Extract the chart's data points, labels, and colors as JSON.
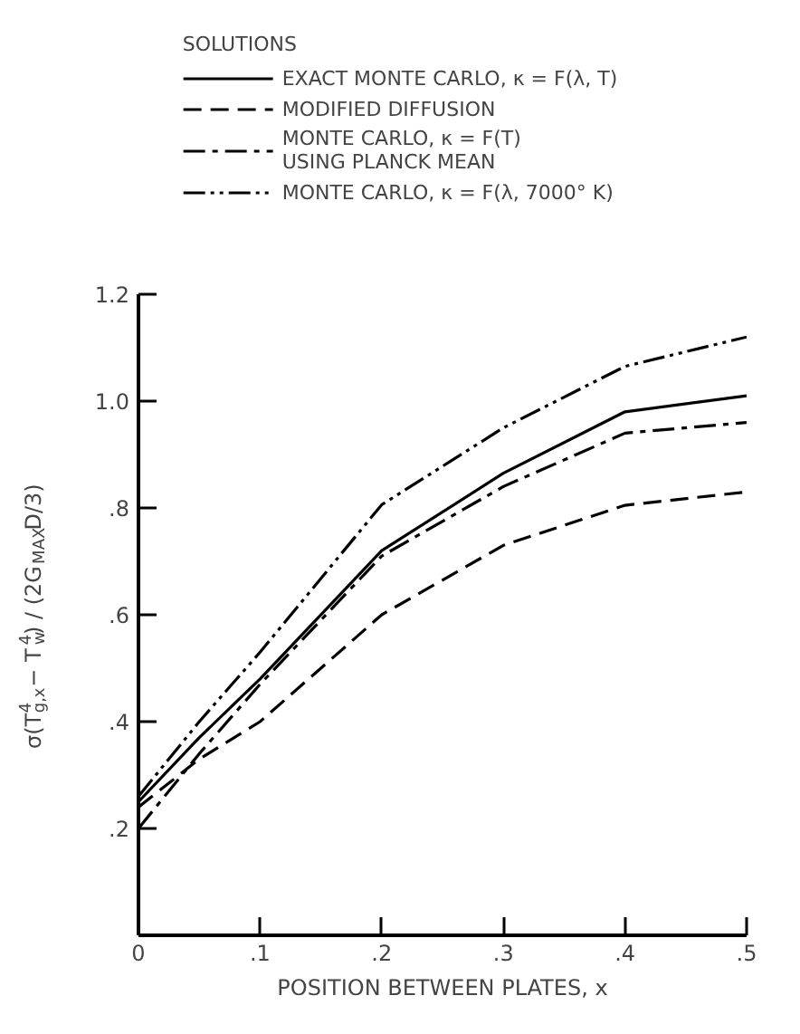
{
  "chart_data": {
    "type": "line",
    "legend_title": "SOLUTIONS",
    "legend": "top",
    "xlabel": "POSITION BETWEEN PLATES, x",
    "ylabel": "σ(T$_{g,x}$$^{4}$ − T$_{w}$$^{4}$) / (2G$_{MAX}$D/3)",
    "x": [
      0,
      0.05,
      0.1,
      0.2,
      0.3,
      0.4,
      0.5
    ],
    "series": [
      {
        "name": "EXACT MONTE CARLO, κ = F(λ, T)",
        "color": "#000000",
        "line_style": "solid",
        "values": [
          0.25,
          0.37,
          0.48,
          0.72,
          0.865,
          0.98,
          1.01
        ]
      },
      {
        "name": "MODIFIED DIFFUSION",
        "color": "#000000",
        "line_style": "dashed",
        "values": [
          0.24,
          0.33,
          0.4,
          0.6,
          0.73,
          0.805,
          0.83
        ]
      },
      {
        "name": "MONTE CARLO, κ = F(T)\nUSING PLANCK MEAN",
        "color": "#000000",
        "line_style": "dashdot",
        "values": [
          0.2,
          0.34,
          0.47,
          0.71,
          0.84,
          0.94,
          0.96
        ]
      },
      {
        "name": "MONTE CARLO, κ = F(λ, 7000° K)",
        "color": "#000000",
        "line_style": "dashdotdot",
        "values": [
          0.26,
          0.4,
          0.53,
          0.806,
          0.95,
          1.065,
          1.12
        ]
      }
    ],
    "xlim": [
      0,
      0.5
    ],
    "ylim": [
      0,
      1.2
    ],
    "xticks": [
      0,
      {
        "value": 0.1,
        "label": ".1"
      },
      {
        "value": 0.2,
        "label": ".2"
      },
      {
        "value": 0.3,
        "label": ".3"
      },
      {
        "value": 0.4,
        "label": ".4"
      },
      {
        "value": 0.5,
        "label": ".5"
      }
    ],
    "yticks": [
      {
        "value": 0.2,
        "label": ".2"
      },
      {
        "value": 0.4,
        "label": ".4"
      },
      {
        "value": 0.6,
        "label": ".6"
      },
      {
        "value": 0.8,
        "label": ".8"
      },
      {
        "value": 1.0,
        "label": "1.0"
      },
      {
        "value": 1.2,
        "label": "1.2"
      }
    ],
    "grid": false,
    "marker": "none"
  }
}
